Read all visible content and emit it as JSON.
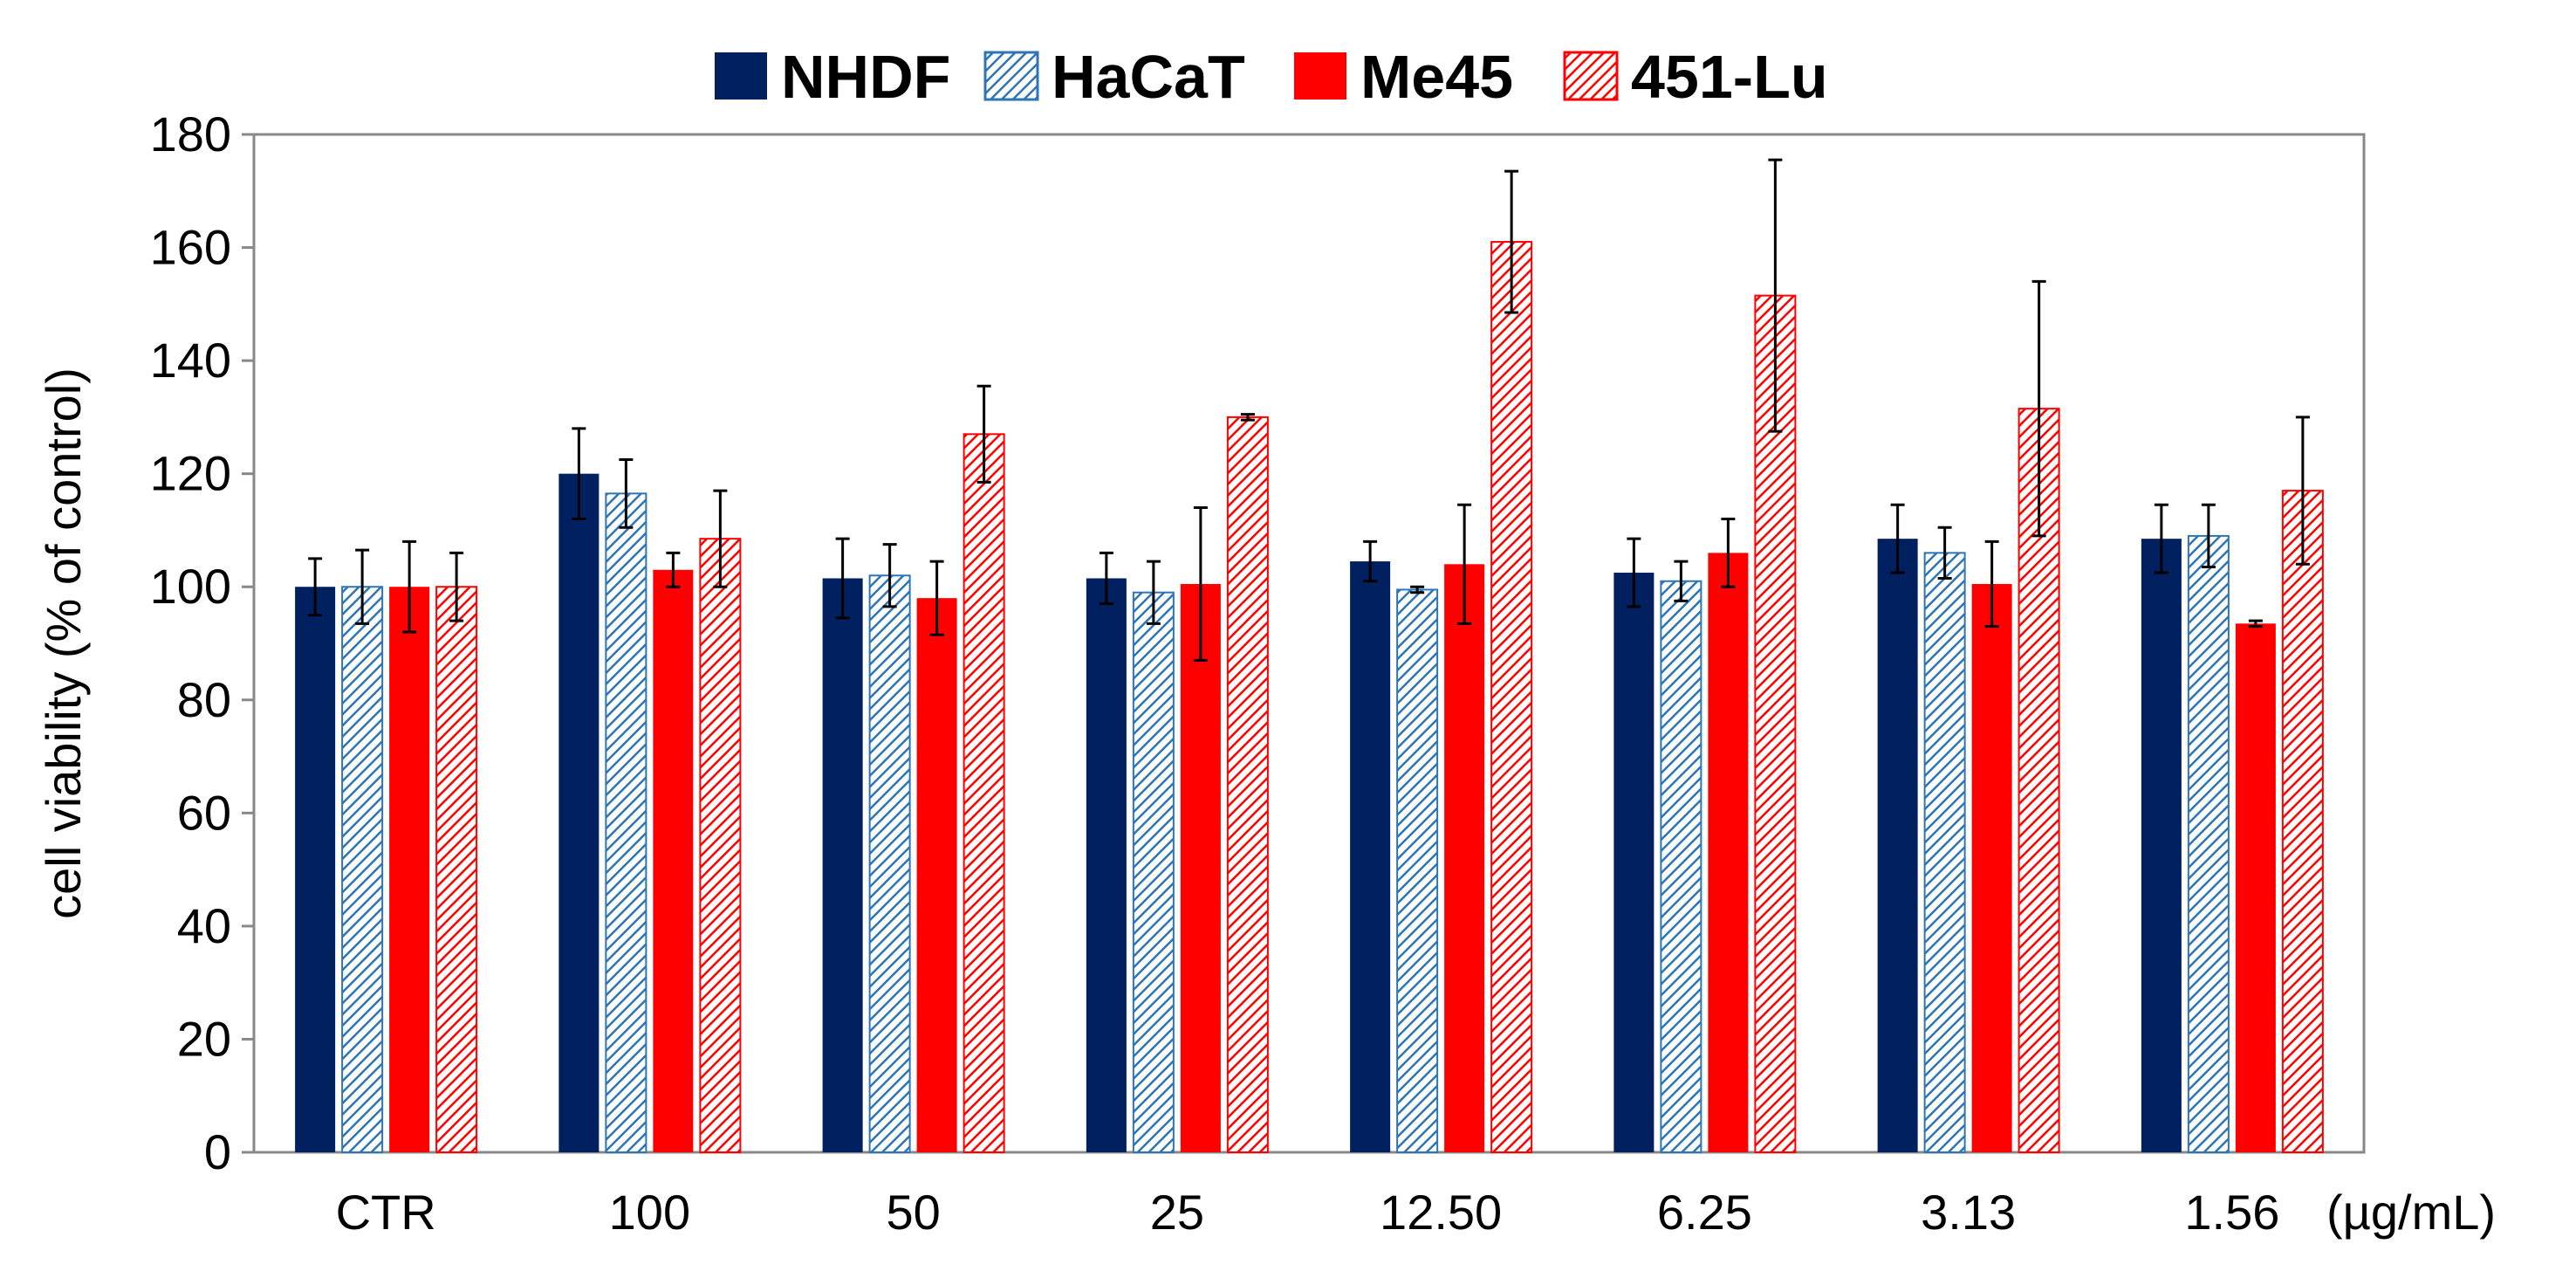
{
  "chart_data": {
    "type": "bar",
    "title": "",
    "xlabel": "",
    "ylabel": "cell viability (% of control)",
    "x_unit": "(µg/mL)",
    "ylim": [
      0,
      180
    ],
    "yticks": [
      0,
      20,
      40,
      60,
      80,
      100,
      120,
      140,
      160,
      180
    ],
    "grid": false,
    "legend_position": "top-center",
    "categories": [
      "CTR",
      "100",
      "50",
      "25",
      "12.50",
      "6.25",
      "3.13",
      "1.56"
    ],
    "series": [
      {
        "name": "NHDF",
        "color": "#002060",
        "pattern": "solid",
        "values": [
          100,
          120,
          101.5,
          101.5,
          104.5,
          102.5,
          108.5,
          108.5
        ],
        "errors": [
          5,
          8,
          7,
          4.5,
          3.5,
          6,
          6,
          6
        ]
      },
      {
        "name": "HaCaT",
        "color": "#2E75B6",
        "pattern": "hatch",
        "values": [
          100,
          116.5,
          102,
          99,
          99.5,
          101,
          106,
          109
        ],
        "errors": [
          6.5,
          6,
          5.5,
          5.5,
          0.5,
          3.5,
          4.5,
          5.5
        ]
      },
      {
        "name": "Me45",
        "color": "#FF0000",
        "pattern": "solid",
        "values": [
          100,
          103,
          98,
          100.5,
          104,
          106,
          100.5,
          93.5
        ],
        "errors": [
          8,
          3,
          6.5,
          13.5,
          10.5,
          6,
          7.5,
          0.5
        ]
      },
      {
        "name": "451-Lu",
        "color": "#FF0000",
        "pattern": "hatch",
        "values": [
          100,
          108.5,
          127,
          130,
          161,
          151.5,
          131.5,
          117
        ],
        "errors": [
          6,
          8.5,
          8.5,
          0.5,
          12.5,
          24,
          22.5,
          13
        ]
      }
    ]
  }
}
